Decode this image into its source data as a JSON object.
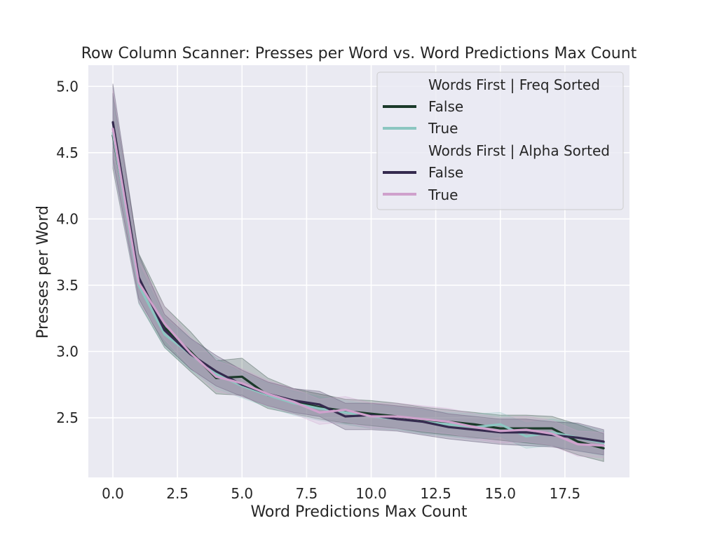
{
  "chart_data": {
    "type": "line",
    "title": "Row Column Scanner: Presses per Word vs. Word Predictions Max Count",
    "xlabel": "Word Predictions Max Count",
    "ylabel": "Presses per Word",
    "xlim": [
      -0.95,
      20.0
    ],
    "ylim": [
      2.05,
      5.16
    ],
    "xticks": [
      0,
      2.5,
      5,
      7.5,
      10,
      12.5,
      15,
      17.5
    ],
    "xtick_labels": [
      "0.0",
      "2.5",
      "5.0",
      "7.5",
      "10.0",
      "12.5",
      "15.0",
      "17.5"
    ],
    "yticks": [
      2.5,
      3.0,
      3.5,
      4.0,
      4.5,
      5.0
    ],
    "ytick_labels": [
      "2.5",
      "3.0",
      "3.5",
      "4.0",
      "4.5",
      "5.0"
    ],
    "grid": true,
    "legend_position": "top-right",
    "legend": [
      {
        "title": "Words First | Freq Sorted",
        "entries": [
          {
            "label": "False",
            "series": 0
          },
          {
            "label": "True",
            "series": 1
          }
        ]
      },
      {
        "title": "Words First | Alpha Sorted",
        "entries": [
          {
            "label": "False",
            "series": 2
          },
          {
            "label": "True",
            "series": 3
          }
        ]
      }
    ],
    "x": [
      0,
      1,
      2,
      3,
      4,
      5,
      6,
      7,
      8,
      9,
      10,
      11,
      12,
      13,
      14,
      15,
      16,
      17,
      18,
      19
    ],
    "series": [
      {
        "color": "#1b3a2a",
        "values": [
          4.63,
          3.55,
          3.18,
          3.0,
          2.8,
          2.81,
          2.67,
          2.62,
          2.58,
          2.55,
          2.53,
          2.51,
          2.48,
          2.47,
          2.45,
          2.42,
          2.42,
          2.42,
          2.32,
          2.27
        ],
        "ci_lower": [
          4.38,
          3.37,
          3.03,
          2.85,
          2.68,
          2.67,
          2.57,
          2.53,
          2.49,
          2.46,
          2.44,
          2.42,
          2.39,
          2.37,
          2.35,
          2.33,
          2.31,
          2.29,
          2.22,
          2.17
        ],
        "ci_upper": [
          4.95,
          3.74,
          3.34,
          3.15,
          2.93,
          2.95,
          2.8,
          2.72,
          2.68,
          2.64,
          2.63,
          2.61,
          2.58,
          2.56,
          2.54,
          2.52,
          2.52,
          2.51,
          2.45,
          2.38
        ]
      },
      {
        "color": "#8cc6c1",
        "values": [
          4.65,
          3.5,
          3.13,
          2.98,
          2.83,
          2.74,
          2.67,
          2.61,
          2.57,
          2.54,
          2.51,
          2.49,
          2.47,
          2.45,
          2.43,
          2.45,
          2.36,
          2.39,
          2.35,
          2.31
        ],
        "ci_lower": [
          4.4,
          3.36,
          3.03,
          2.86,
          2.72,
          2.65,
          2.58,
          2.52,
          2.48,
          2.45,
          2.42,
          2.41,
          2.38,
          2.36,
          2.34,
          2.36,
          2.27,
          2.29,
          2.25,
          2.21
        ],
        "ci_upper": [
          4.93,
          3.66,
          3.25,
          3.1,
          2.95,
          2.84,
          2.76,
          2.7,
          2.66,
          2.63,
          2.6,
          2.58,
          2.56,
          2.54,
          2.53,
          2.54,
          2.46,
          2.49,
          2.45,
          2.4
        ]
      },
      {
        "color": "#352a4e",
        "values": [
          4.73,
          3.56,
          3.16,
          2.98,
          2.85,
          2.75,
          2.68,
          2.63,
          2.6,
          2.51,
          2.52,
          2.49,
          2.47,
          2.43,
          2.41,
          2.39,
          2.39,
          2.37,
          2.35,
          2.32
        ],
        "ci_lower": [
          4.45,
          3.4,
          3.05,
          2.87,
          2.74,
          2.66,
          2.59,
          2.54,
          2.51,
          2.41,
          2.41,
          2.4,
          2.37,
          2.34,
          2.32,
          2.3,
          2.29,
          2.28,
          2.25,
          2.22
        ],
        "ci_upper": [
          5.02,
          3.73,
          3.28,
          3.1,
          2.97,
          2.86,
          2.77,
          2.72,
          2.7,
          2.61,
          2.61,
          2.59,
          2.57,
          2.53,
          2.51,
          2.49,
          2.49,
          2.47,
          2.46,
          2.41
        ]
      },
      {
        "color": "#cfa1cc",
        "values": [
          4.68,
          3.52,
          3.21,
          2.99,
          2.81,
          2.76,
          2.68,
          2.62,
          2.54,
          2.56,
          2.51,
          2.51,
          2.49,
          2.47,
          2.43,
          2.4,
          2.41,
          2.38,
          2.3,
          2.29
        ],
        "ci_lower": [
          4.4,
          3.37,
          3.09,
          2.88,
          2.7,
          2.66,
          2.59,
          2.53,
          2.45,
          2.47,
          2.42,
          2.42,
          2.4,
          2.38,
          2.34,
          2.31,
          2.32,
          2.29,
          2.21,
          2.2
        ],
        "ci_upper": [
          4.97,
          3.68,
          3.34,
          3.11,
          2.93,
          2.87,
          2.78,
          2.72,
          2.64,
          2.66,
          2.61,
          2.61,
          2.59,
          2.57,
          2.53,
          2.5,
          2.51,
          2.48,
          2.4,
          2.39
        ]
      }
    ]
  }
}
